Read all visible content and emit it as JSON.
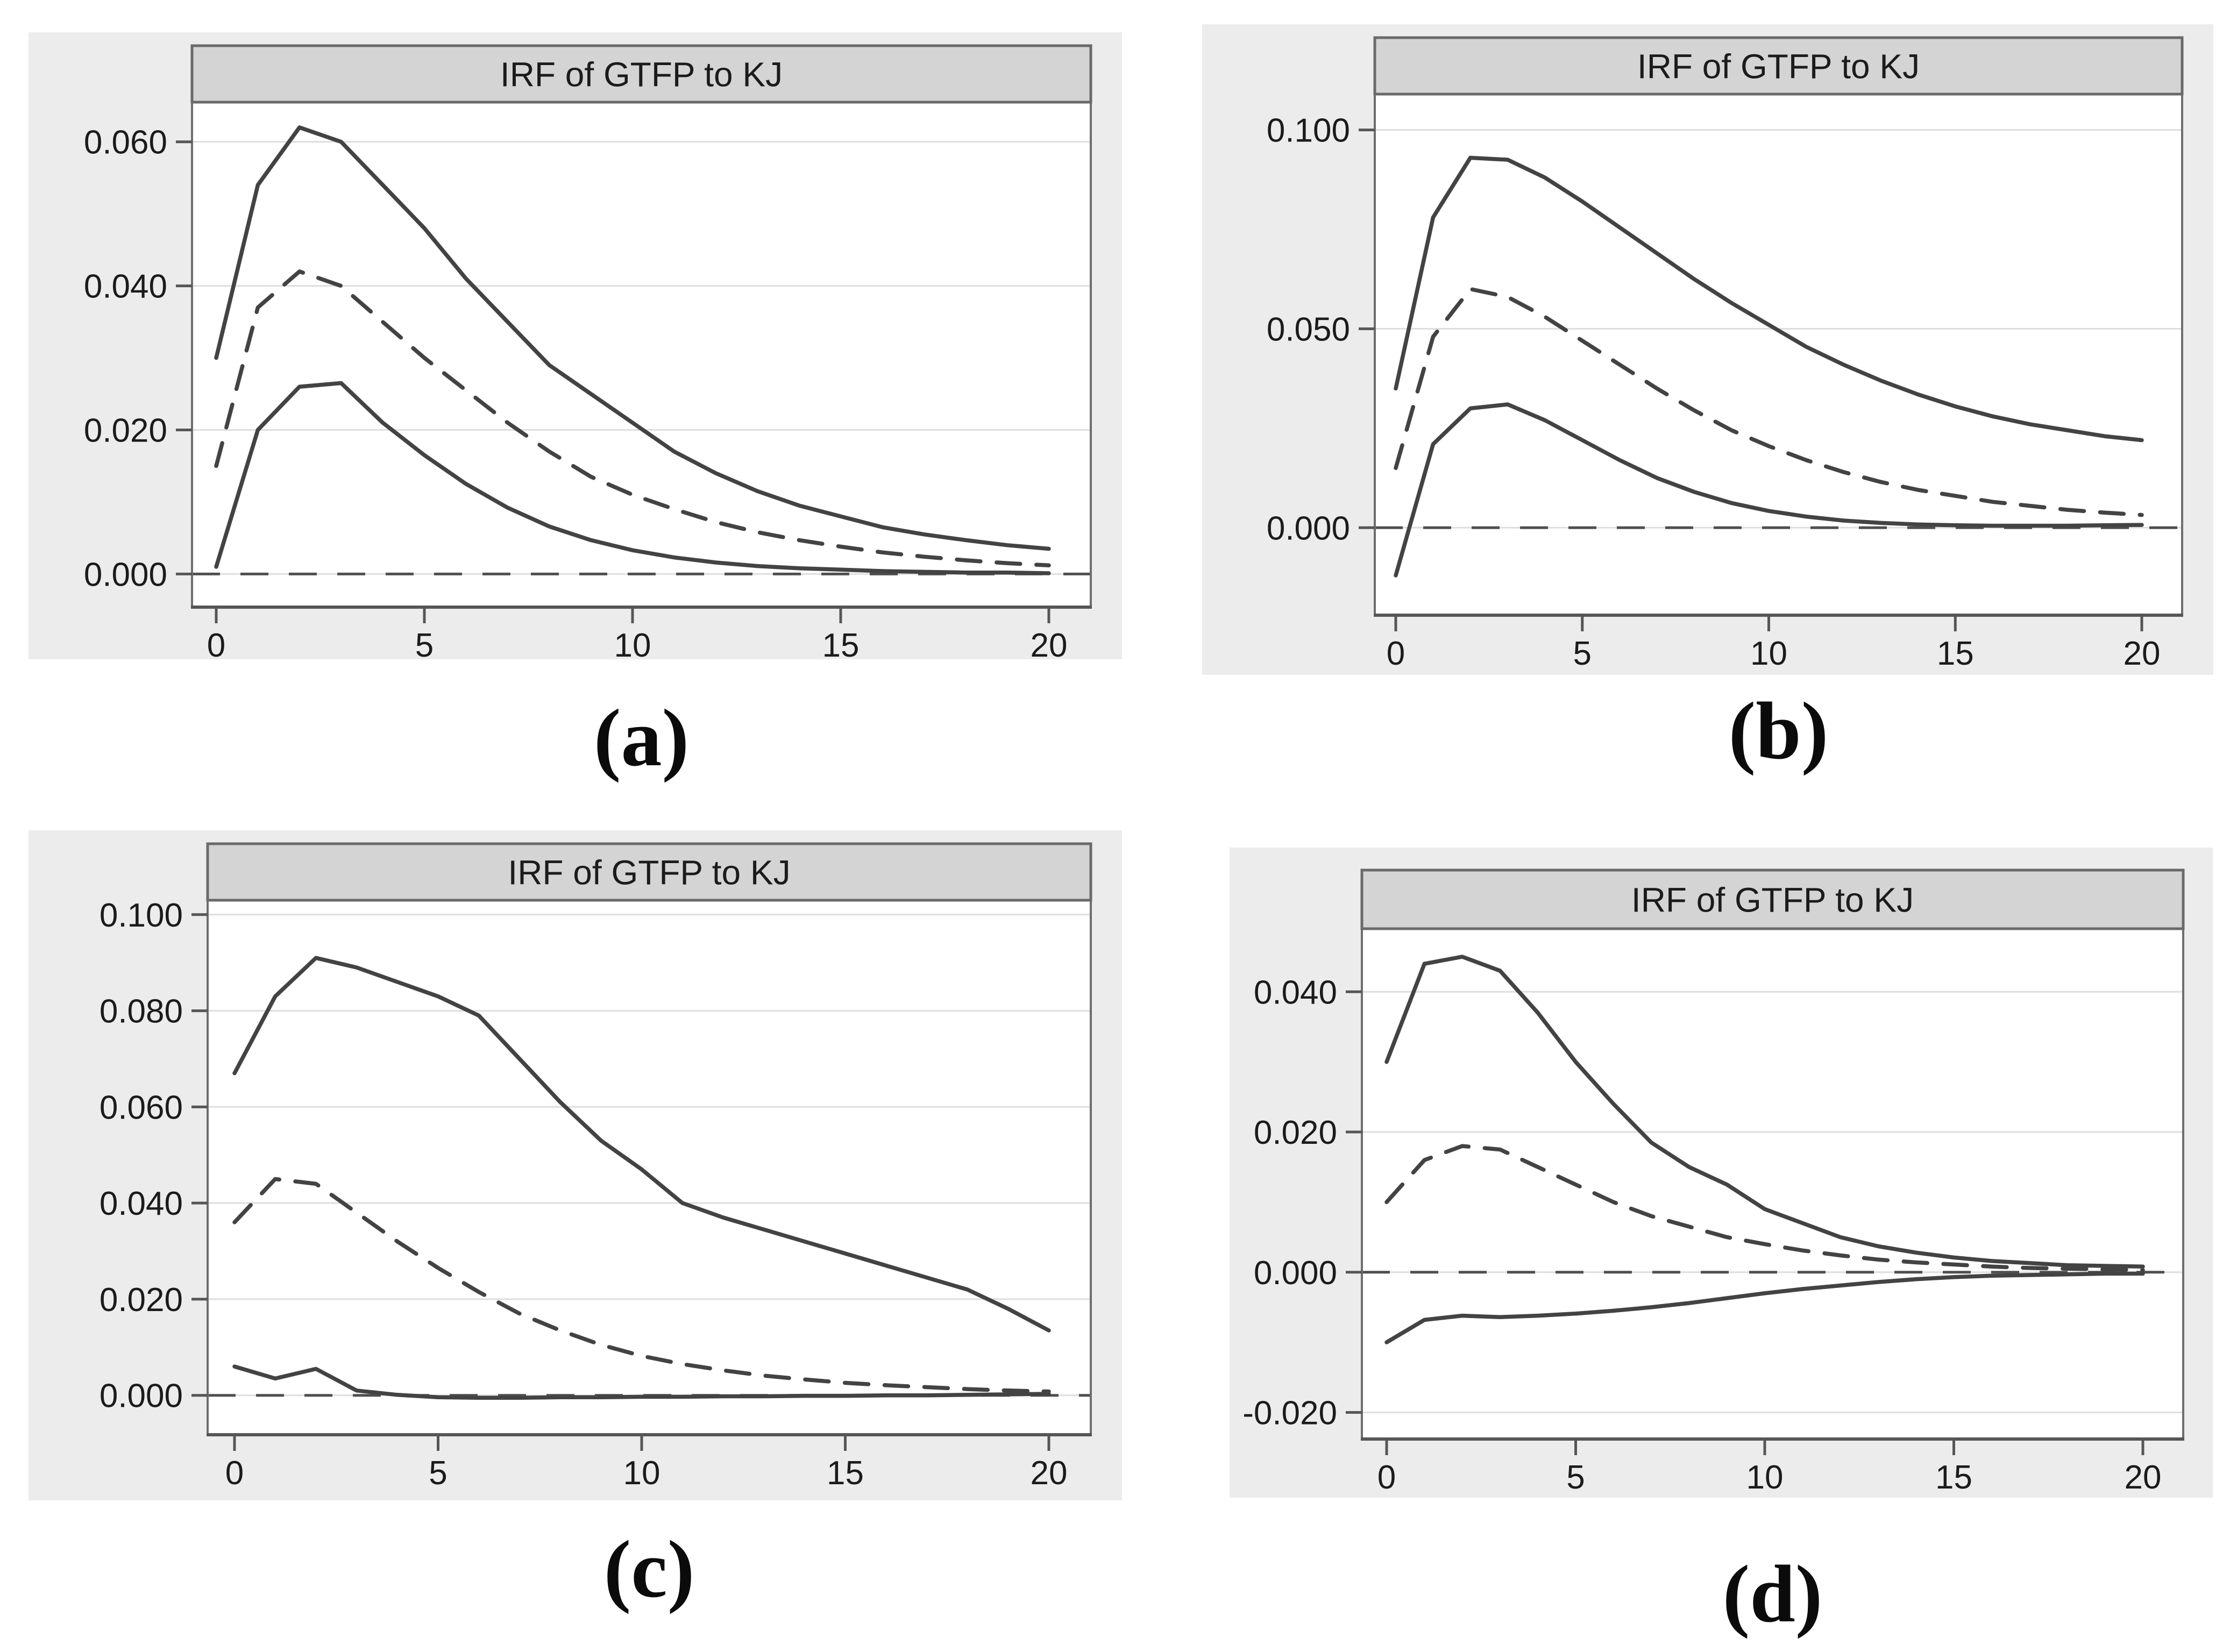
{
  "colors": {
    "page_bg": "#ffffff",
    "panel_bg": "#ececec",
    "plot_bg": "#ffffff",
    "title_bg": "#d4d4d4",
    "title_border": "#6a6a6a",
    "plot_border": "#6e6e6e",
    "axis": "#565656",
    "grid": "#dedede",
    "zero_line": "#4f4f4f",
    "line": "#434343",
    "text": "#1b1b1b"
  },
  "chart_data": {
    "note": "Four Stata-style impulse response function panels; solid lines are upper/lower confidence bands, dashed line is the IRF estimate, dashed horizontal line is zero."
  },
  "charts": [
    {
      "id": "a",
      "caption": "(a)",
      "title": "IRF of GTFP to KJ",
      "type": "line",
      "xlim": [
        0,
        20
      ],
      "ylim": [
        -0.0046,
        0.0655
      ],
      "x_ticks": [
        0,
        5,
        10,
        15,
        20
      ],
      "y_ticks": [
        {
          "value": 0.0,
          "label": "0.000"
        },
        {
          "value": 0.02,
          "label": "0.020"
        },
        {
          "value": 0.04,
          "label": "0.040"
        },
        {
          "value": 0.06,
          "label": "0.060"
        }
      ],
      "zero_line": true,
      "x": [
        0,
        1,
        2,
        3,
        4,
        5,
        6,
        7,
        8,
        9,
        10,
        11,
        12,
        13,
        14,
        15,
        16,
        17,
        18,
        19,
        20
      ],
      "series": [
        {
          "name": "upper-confidence-band",
          "style": "solid",
          "values": [
            0.03,
            0.054,
            0.062,
            0.06,
            0.054,
            0.048,
            0.041,
            0.035,
            0.029,
            0.025,
            0.021,
            0.017,
            0.014,
            0.0115,
            0.0095,
            0.008,
            0.0065,
            0.0055,
            0.0047,
            0.004,
            0.0035
          ]
        },
        {
          "name": "irf-estimate",
          "style": "dashed",
          "values": [
            0.015,
            0.037,
            0.042,
            0.04,
            0.035,
            0.03,
            0.0255,
            0.021,
            0.017,
            0.0135,
            0.011,
            0.009,
            0.0072,
            0.0058,
            0.0047,
            0.0038,
            0.003,
            0.0024,
            0.0019,
            0.0015,
            0.0012
          ]
        },
        {
          "name": "lower-confidence-band",
          "style": "solid",
          "values": [
            0.001,
            0.02,
            0.026,
            0.0265,
            0.021,
            0.0165,
            0.0125,
            0.0092,
            0.0066,
            0.0047,
            0.0033,
            0.0023,
            0.0016,
            0.0011,
            0.0008,
            0.0006,
            0.0004,
            0.0003,
            0.0002,
            0.0002,
            0.0001
          ]
        }
      ]
    },
    {
      "id": "b",
      "caption": "(b)",
      "title": "IRF of GTFP to KJ",
      "type": "line",
      "xlim": [
        0,
        20
      ],
      "ylim": [
        -0.022,
        0.109
      ],
      "x_ticks": [
        0,
        5,
        10,
        15,
        20
      ],
      "y_ticks": [
        {
          "value": 0.0,
          "label": "0.000"
        },
        {
          "value": 0.05,
          "label": "0.050"
        },
        {
          "value": 0.1,
          "label": "0.100"
        }
      ],
      "zero_line": true,
      "x": [
        0,
        1,
        2,
        3,
        4,
        5,
        6,
        7,
        8,
        9,
        10,
        11,
        12,
        13,
        14,
        15,
        16,
        17,
        18,
        19,
        20
      ],
      "series": [
        {
          "name": "upper-confidence-band",
          "style": "solid",
          "values": [
            0.035,
            0.078,
            0.093,
            0.0925,
            0.088,
            0.082,
            0.0755,
            0.069,
            0.0625,
            0.0565,
            0.051,
            0.0455,
            0.041,
            0.037,
            0.0335,
            0.0305,
            0.028,
            0.026,
            0.0245,
            0.023,
            0.022
          ]
        },
        {
          "name": "irf-estimate",
          "style": "dashed",
          "values": [
            0.015,
            0.048,
            0.06,
            0.058,
            0.053,
            0.047,
            0.041,
            0.035,
            0.0295,
            0.0245,
            0.0205,
            0.017,
            0.014,
            0.0115,
            0.0095,
            0.008,
            0.0065,
            0.0055,
            0.0045,
            0.0038,
            0.0032
          ]
        },
        {
          "name": "lower-confidence-band",
          "style": "solid",
          "values": [
            -0.012,
            0.021,
            0.03,
            0.031,
            0.027,
            0.022,
            0.017,
            0.0125,
            0.009,
            0.0062,
            0.0042,
            0.0028,
            0.0018,
            0.0012,
            0.0008,
            0.0006,
            0.0005,
            0.0005,
            0.0005,
            0.0006,
            0.0007
          ]
        }
      ]
    },
    {
      "id": "c",
      "caption": "(c)",
      "title": "IRF of GTFP to KJ",
      "type": "line",
      "xlim": [
        0,
        20
      ],
      "ylim": [
        -0.0082,
        0.103
      ],
      "x_ticks": [
        0,
        5,
        10,
        15,
        20
      ],
      "y_ticks": [
        {
          "value": 0.0,
          "label": "0.000"
        },
        {
          "value": 0.02,
          "label": "0.020"
        },
        {
          "value": 0.04,
          "label": "0.040"
        },
        {
          "value": 0.06,
          "label": "0.060"
        },
        {
          "value": 0.08,
          "label": "0.080"
        },
        {
          "value": 0.1,
          "label": "0.100"
        }
      ],
      "zero_line": true,
      "x": [
        0,
        1,
        2,
        3,
        4,
        5,
        6,
        7,
        8,
        9,
        10,
        11,
        12,
        13,
        14,
        15,
        16,
        17,
        18,
        19,
        20
      ],
      "series": [
        {
          "name": "upper-confidence-band",
          "style": "solid",
          "values": [
            0.067,
            0.083,
            0.091,
            0.089,
            0.086,
            0.083,
            0.079,
            0.07,
            0.061,
            0.053,
            0.047,
            0.04,
            0.037,
            0.0345,
            0.032,
            0.0295,
            0.027,
            0.0245,
            0.022,
            0.018,
            0.0135
          ]
        },
        {
          "name": "irf-estimate",
          "style": "dashed",
          "values": [
            0.036,
            0.045,
            0.044,
            0.038,
            0.032,
            0.0265,
            0.0215,
            0.017,
            0.0135,
            0.0105,
            0.0082,
            0.0065,
            0.0052,
            0.0041,
            0.0033,
            0.0026,
            0.0021,
            0.0017,
            0.0013,
            0.001,
            0.0008
          ]
        },
        {
          "name": "lower-confidence-band",
          "style": "solid",
          "values": [
            0.006,
            0.0035,
            0.0055,
            0.001,
            0.0001,
            -0.0004,
            -0.0005,
            -0.0005,
            -0.0004,
            -0.0004,
            -0.0003,
            -0.0003,
            -0.0002,
            -0.0002,
            -0.0001,
            -0.0001,
            0.0,
            0.0,
            0.0001,
            0.0002,
            0.0003
          ]
        }
      ]
    },
    {
      "id": "d",
      "caption": "(d)",
      "title": "IRF of GTFP to KJ",
      "type": "line",
      "xlim": [
        0,
        20
      ],
      "ylim": [
        -0.0238,
        0.049
      ],
      "x_ticks": [
        0,
        5,
        10,
        15,
        20
      ],
      "y_ticks": [
        {
          "value": -0.02,
          "label": "-0.020"
        },
        {
          "value": 0.0,
          "label": "0.000"
        },
        {
          "value": 0.02,
          "label": "0.020"
        },
        {
          "value": 0.04,
          "label": "0.040"
        }
      ],
      "zero_line": true,
      "x": [
        0,
        1,
        2,
        3,
        4,
        5,
        6,
        7,
        8,
        9,
        10,
        11,
        12,
        13,
        14,
        15,
        16,
        17,
        18,
        19,
        20
      ],
      "series": [
        {
          "name": "upper-confidence-band",
          "style": "solid",
          "values": [
            0.03,
            0.044,
            0.045,
            0.043,
            0.037,
            0.03,
            0.024,
            0.0185,
            0.015,
            0.0125,
            0.009,
            0.007,
            0.005,
            0.0037,
            0.0028,
            0.0021,
            0.0016,
            0.0013,
            0.001,
            0.0009,
            0.0008
          ]
        },
        {
          "name": "irf-estimate",
          "style": "dashed",
          "values": [
            0.01,
            0.016,
            0.018,
            0.0175,
            0.015,
            0.0125,
            0.01,
            0.008,
            0.0065,
            0.005,
            0.004,
            0.0031,
            0.0024,
            0.0018,
            0.0014,
            0.0011,
            0.0008,
            0.0006,
            0.0005,
            0.0004,
            0.0003
          ]
        },
        {
          "name": "lower-confidence-band",
          "style": "solid",
          "values": [
            -0.01,
            -0.0068,
            -0.0062,
            -0.0064,
            -0.0062,
            -0.0059,
            -0.0055,
            -0.005,
            -0.0044,
            -0.0037,
            -0.003,
            -0.0024,
            -0.0019,
            -0.0014,
            -0.001,
            -0.0007,
            -0.0005,
            -0.0004,
            -0.0003,
            -0.0002,
            -0.0002
          ]
        }
      ]
    }
  ]
}
